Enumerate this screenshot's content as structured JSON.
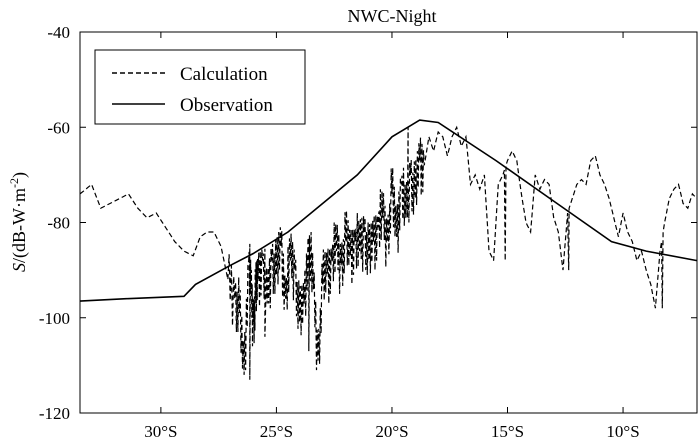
{
  "chart_data": {
    "type": "line",
    "title": "NWC-Night",
    "xlabel": "",
    "ylabel": "S/(dB-W·m-2)",
    "ylabel_parts": {
      "symbol": "S",
      "unit": "/(dB-W·m",
      "exponent": "-2",
      "close": ")"
    },
    "xlim": [
      33.5,
      6.8
    ],
    "ylim": [
      -120,
      -40
    ],
    "x_ticks": [
      30,
      25,
      20,
      15,
      10
    ],
    "x_tick_labels": [
      "30°S",
      "25°S",
      "20°S",
      "15°S",
      "10°S"
    ],
    "y_ticks": [
      -40,
      -60,
      -80,
      -100,
      -120
    ],
    "y_tick_labels": [
      "-40",
      "-60",
      "-80",
      "-100",
      "-120"
    ],
    "grid": false,
    "legend_position": "top-left",
    "series": [
      {
        "name": "Calculation",
        "style": "dashed",
        "x": [
          33.5,
          33.0,
          32.6,
          32.2,
          31.8,
          31.4,
          31.0,
          30.6,
          30.2,
          29.8,
          29.4,
          29.0,
          28.6,
          28.3,
          28.0,
          27.7,
          27.4,
          27.1,
          26.8,
          26.6,
          26.4,
          26.2,
          26.1,
          26.0,
          25.9,
          25.8,
          25.6,
          25.4,
          25.2,
          25.0,
          24.8,
          24.6,
          24.4,
          24.2,
          24.0,
          23.8,
          23.6,
          23.4,
          23.2,
          23.0,
          22.8,
          22.6,
          22.4,
          22.2,
          22.0,
          21.8,
          21.6,
          21.4,
          21.2,
          21.0,
          20.8,
          20.6,
          20.4,
          20.2,
          20.0,
          19.8,
          19.6,
          19.4,
          19.2,
          19.0,
          18.8,
          18.6,
          18.4,
          18.2,
          18.0,
          17.8,
          17.6,
          17.4,
          17.2,
          17.0,
          16.8,
          16.6,
          16.4,
          16.2,
          16.0,
          15.8,
          15.6,
          15.4,
          15.2,
          15.0,
          14.8,
          14.6,
          14.4,
          14.2,
          14.0,
          13.8,
          13.6,
          13.4,
          13.2,
          13.0,
          12.8,
          12.6,
          12.4,
          12.2,
          12.0,
          11.8,
          11.6,
          11.4,
          11.2,
          11.0,
          10.8,
          10.6,
          10.4,
          10.2,
          10.0,
          9.8,
          9.6,
          9.4,
          9.2,
          9.0,
          8.8,
          8.6,
          8.4,
          8.2,
          8.0,
          7.8,
          7.6,
          7.4,
          7.2,
          7.0,
          6.8
        ],
        "y": [
          -74,
          -72,
          -77,
          -76,
          -75,
          -74,
          -77,
          -79,
          -78,
          -81,
          -84,
          -86,
          -87,
          -83,
          -82,
          -82,
          -85,
          -92,
          -96,
          -99,
          -112,
          -88,
          -95,
          -101,
          -96,
          -92,
          -88,
          -97,
          -88,
          -91,
          -85,
          -96,
          -88,
          -90,
          -101,
          -97,
          -84,
          -94,
          -109,
          -93,
          -91,
          -88,
          -86,
          -89,
          -84,
          -87,
          -84,
          -86,
          -82,
          -88,
          -84,
          -81,
          -79,
          -84,
          -74,
          -83,
          -72,
          -79,
          -70,
          -75,
          -67,
          -68,
          -62,
          -65,
          -61,
          -62,
          -66,
          -62,
          -60,
          -64,
          -62,
          -72,
          -70,
          -73,
          -70,
          -86,
          -88,
          -72,
          -70,
          -67,
          -65,
          -67,
          -74,
          -80,
          -82,
          -70,
          -73,
          -71,
          -72,
          -79,
          -82,
          -90,
          -78,
          -75,
          -72,
          -71,
          -72,
          -67,
          -66,
          -70,
          -72,
          -75,
          -79,
          -83,
          -78,
          -82,
          -84,
          -88,
          -86,
          -90,
          -93,
          -98,
          -86,
          -80,
          -75,
          -73,
          -72,
          -76,
          -77,
          -74,
          -75
        ],
        "spikes": [
          [
            26.15,
            -113
          ],
          [
            25.5,
            -104
          ],
          [
            23.6,
            -107
          ],
          [
            23.2,
            -109
          ],
          [
            19.3,
            -60
          ],
          [
            15.1,
            -88
          ],
          [
            12.35,
            -90
          ],
          [
            8.3,
            -98
          ]
        ]
      },
      {
        "name": "Observation",
        "style": "solid",
        "x": [
          33.5,
          31.5,
          29.0,
          28.5,
          27.0,
          26.0,
          24.5,
          23.5,
          21.5,
          20.0,
          18.8,
          18.0,
          15.5,
          13.0,
          10.5,
          9.0,
          6.8
        ],
        "y": [
          -96.5,
          -96,
          -95.5,
          -93,
          -89,
          -86.5,
          -82,
          -78,
          -70,
          -62,
          -58.5,
          -59,
          -67,
          -75.5,
          -84,
          -86,
          -88
        ]
      }
    ]
  }
}
